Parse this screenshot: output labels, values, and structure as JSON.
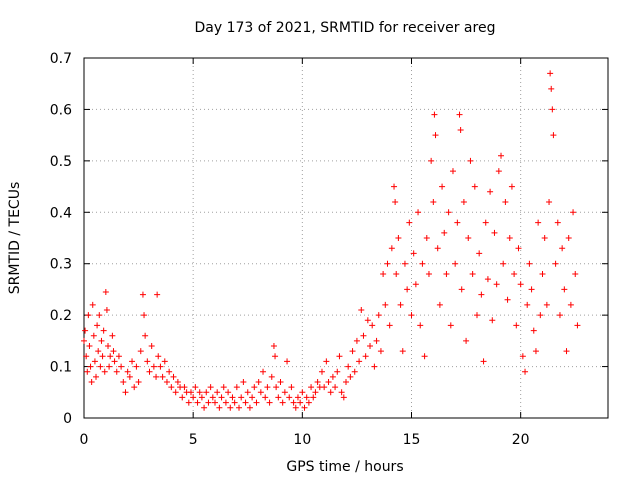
{
  "chart_data": {
    "type": "scatter",
    "title": "Day 173 of 2021, SRMTID for receiver areg",
    "xlabel": "GPS time / hours",
    "ylabel": "SRMTID / TECUs",
    "xlim": [
      0,
      24
    ],
    "ylim": [
      0,
      0.7
    ],
    "grid": true,
    "marker": "+",
    "x_ticks": [
      0,
      5,
      10,
      15,
      20
    ],
    "x_tick_labels": [
      "0",
      "5",
      "10",
      "15",
      "20"
    ],
    "y_ticks": [
      0,
      0.1,
      0.2,
      0.3,
      0.4,
      0.5,
      0.6,
      0.7
    ],
    "y_tick_labels": [
      "0",
      "0.1",
      "0.2",
      "0.3",
      "0.4",
      "0.5",
      "0.6",
      "0.7"
    ],
    "series": [
      {
        "name": "SRMTID",
        "color": "#ff0000",
        "points": [
          [
            0.0,
            0.15
          ],
          [
            0.05,
            0.17
          ],
          [
            0.1,
            0.12
          ],
          [
            0.15,
            0.09
          ],
          [
            0.2,
            0.2
          ],
          [
            0.25,
            0.14
          ],
          [
            0.3,
            0.1
          ],
          [
            0.35,
            0.07
          ],
          [
            0.4,
            0.22
          ],
          [
            0.45,
            0.16
          ],
          [
            0.5,
            0.11
          ],
          [
            0.55,
            0.08
          ],
          [
            0.6,
            0.18
          ],
          [
            0.65,
            0.13
          ],
          [
            0.7,
            0.2
          ],
          [
            0.75,
            0.1
          ],
          [
            0.8,
            0.15
          ],
          [
            0.85,
            0.12
          ],
          [
            0.9,
            0.17
          ],
          [
            0.95,
            0.09
          ],
          [
            1.0,
            0.245
          ],
          [
            1.05,
            0.21
          ],
          [
            1.1,
            0.14
          ],
          [
            1.15,
            0.1
          ],
          [
            1.2,
            0.12
          ],
          [
            1.3,
            0.16
          ],
          [
            1.35,
            0.13
          ],
          [
            1.4,
            0.11
          ],
          [
            1.5,
            0.09
          ],
          [
            1.6,
            0.12
          ],
          [
            1.7,
            0.1
          ],
          [
            1.8,
            0.07
          ],
          [
            1.9,
            0.05
          ],
          [
            2.0,
            0.09
          ],
          [
            2.1,
            0.08
          ],
          [
            2.2,
            0.11
          ],
          [
            2.3,
            0.06
          ],
          [
            2.4,
            0.1
          ],
          [
            2.5,
            0.07
          ],
          [
            2.6,
            0.13
          ],
          [
            2.7,
            0.24
          ],
          [
            2.75,
            0.2
          ],
          [
            2.8,
            0.16
          ],
          [
            2.9,
            0.11
          ],
          [
            3.0,
            0.09
          ],
          [
            3.1,
            0.14
          ],
          [
            3.2,
            0.1
          ],
          [
            3.3,
            0.08
          ],
          [
            3.35,
            0.24
          ],
          [
            3.4,
            0.12
          ],
          [
            3.5,
            0.1
          ],
          [
            3.6,
            0.08
          ],
          [
            3.7,
            0.11
          ],
          [
            3.8,
            0.07
          ],
          [
            3.9,
            0.09
          ],
          [
            4.0,
            0.06
          ],
          [
            4.1,
            0.08
          ],
          [
            4.2,
            0.05
          ],
          [
            4.3,
            0.07
          ],
          [
            4.4,
            0.06
          ],
          [
            4.5,
            0.04
          ],
          [
            4.6,
            0.06
          ],
          [
            4.7,
            0.05
          ],
          [
            4.8,
            0.03
          ],
          [
            4.9,
            0.05
          ],
          [
            5.0,
            0.04
          ],
          [
            5.1,
            0.06
          ],
          [
            5.2,
            0.03
          ],
          [
            5.3,
            0.05
          ],
          [
            5.4,
            0.04
          ],
          [
            5.5,
            0.02
          ],
          [
            5.6,
            0.05
          ],
          [
            5.7,
            0.03
          ],
          [
            5.8,
            0.06
          ],
          [
            5.9,
            0.04
          ],
          [
            6.0,
            0.03
          ],
          [
            6.1,
            0.05
          ],
          [
            6.2,
            0.02
          ],
          [
            6.3,
            0.04
          ],
          [
            6.4,
            0.06
          ],
          [
            6.5,
            0.03
          ],
          [
            6.6,
            0.05
          ],
          [
            6.7,
            0.02
          ],
          [
            6.8,
            0.04
          ],
          [
            6.9,
            0.03
          ],
          [
            7.0,
            0.06
          ],
          [
            7.1,
            0.02
          ],
          [
            7.2,
            0.04
          ],
          [
            7.3,
            0.07
          ],
          [
            7.4,
            0.03
          ],
          [
            7.5,
            0.05
          ],
          [
            7.6,
            0.02
          ],
          [
            7.7,
            0.04
          ],
          [
            7.8,
            0.06
          ],
          [
            7.9,
            0.03
          ],
          [
            8.0,
            0.07
          ],
          [
            8.1,
            0.05
          ],
          [
            8.2,
            0.09
          ],
          [
            8.3,
            0.04
          ],
          [
            8.4,
            0.06
          ],
          [
            8.5,
            0.03
          ],
          [
            8.6,
            0.08
          ],
          [
            8.7,
            0.14
          ],
          [
            8.75,
            0.12
          ],
          [
            8.8,
            0.06
          ],
          [
            8.9,
            0.04
          ],
          [
            9.0,
            0.07
          ],
          [
            9.1,
            0.03
          ],
          [
            9.2,
            0.05
          ],
          [
            9.3,
            0.11
          ],
          [
            9.4,
            0.04
          ],
          [
            9.5,
            0.06
          ],
          [
            9.6,
            0.03
          ],
          [
            9.7,
            0.02
          ],
          [
            9.8,
            0.04
          ],
          [
            9.9,
            0.03
          ],
          [
            10.0,
            0.05
          ],
          [
            10.1,
            0.02
          ],
          [
            10.2,
            0.04
          ],
          [
            10.3,
            0.03
          ],
          [
            10.4,
            0.06
          ],
          [
            10.5,
            0.04
          ],
          [
            10.6,
            0.05
          ],
          [
            10.7,
            0.07
          ],
          [
            10.8,
            0.06
          ],
          [
            10.9,
            0.09
          ],
          [
            11.0,
            0.06
          ],
          [
            11.1,
            0.11
          ],
          [
            11.2,
            0.07
          ],
          [
            11.3,
            0.05
          ],
          [
            11.4,
            0.08
          ],
          [
            11.5,
            0.06
          ],
          [
            11.6,
            0.09
          ],
          [
            11.7,
            0.12
          ],
          [
            11.8,
            0.05
          ],
          [
            11.9,
            0.04
          ],
          [
            12.0,
            0.07
          ],
          [
            12.1,
            0.1
          ],
          [
            12.2,
            0.08
          ],
          [
            12.3,
            0.13
          ],
          [
            12.4,
            0.09
          ],
          [
            12.5,
            0.15
          ],
          [
            12.6,
            0.11
          ],
          [
            12.7,
            0.21
          ],
          [
            12.8,
            0.16
          ],
          [
            12.9,
            0.12
          ],
          [
            13.0,
            0.19
          ],
          [
            13.1,
            0.14
          ],
          [
            13.2,
            0.18
          ],
          [
            13.3,
            0.1
          ],
          [
            13.4,
            0.15
          ],
          [
            13.5,
            0.2
          ],
          [
            13.6,
            0.13
          ],
          [
            13.7,
            0.28
          ],
          [
            13.8,
            0.22
          ],
          [
            13.9,
            0.3
          ],
          [
            14.0,
            0.18
          ],
          [
            14.1,
            0.33
          ],
          [
            14.2,
            0.45
          ],
          [
            14.25,
            0.42
          ],
          [
            14.3,
            0.28
          ],
          [
            14.4,
            0.35
          ],
          [
            14.5,
            0.22
          ],
          [
            14.6,
            0.13
          ],
          [
            14.7,
            0.3
          ],
          [
            14.8,
            0.25
          ],
          [
            14.9,
            0.38
          ],
          [
            15.0,
            0.2
          ],
          [
            15.1,
            0.32
          ],
          [
            15.2,
            0.26
          ],
          [
            15.3,
            0.4
          ],
          [
            15.4,
            0.18
          ],
          [
            15.5,
            0.3
          ],
          [
            15.6,
            0.12
          ],
          [
            15.7,
            0.35
          ],
          [
            15.8,
            0.28
          ],
          [
            15.9,
            0.5
          ],
          [
            16.0,
            0.42
          ],
          [
            16.05,
            0.59
          ],
          [
            16.1,
            0.55
          ],
          [
            16.2,
            0.33
          ],
          [
            16.3,
            0.22
          ],
          [
            16.4,
            0.45
          ],
          [
            16.5,
            0.36
          ],
          [
            16.6,
            0.28
          ],
          [
            16.7,
            0.4
          ],
          [
            16.8,
            0.18
          ],
          [
            16.9,
            0.48
          ],
          [
            17.0,
            0.3
          ],
          [
            17.1,
            0.38
          ],
          [
            17.2,
            0.59
          ],
          [
            17.25,
            0.56
          ],
          [
            17.3,
            0.25
          ],
          [
            17.4,
            0.42
          ],
          [
            17.5,
            0.15
          ],
          [
            17.6,
            0.35
          ],
          [
            17.7,
            0.5
          ],
          [
            17.8,
            0.28
          ],
          [
            17.9,
            0.45
          ],
          [
            18.0,
            0.2
          ],
          [
            18.1,
            0.32
          ],
          [
            18.2,
            0.24
          ],
          [
            18.3,
            0.11
          ],
          [
            18.4,
            0.38
          ],
          [
            18.5,
            0.27
          ],
          [
            18.6,
            0.44
          ],
          [
            18.7,
            0.19
          ],
          [
            18.8,
            0.36
          ],
          [
            18.9,
            0.26
          ],
          [
            19.0,
            0.48
          ],
          [
            19.1,
            0.51
          ],
          [
            19.2,
            0.3
          ],
          [
            19.3,
            0.42
          ],
          [
            19.4,
            0.23
          ],
          [
            19.5,
            0.35
          ],
          [
            19.6,
            0.45
          ],
          [
            19.7,
            0.28
          ],
          [
            19.8,
            0.18
          ],
          [
            19.9,
            0.33
          ],
          [
            20.0,
            0.26
          ],
          [
            20.1,
            0.12
          ],
          [
            20.2,
            0.09
          ],
          [
            20.3,
            0.22
          ],
          [
            20.4,
            0.3
          ],
          [
            20.5,
            0.25
          ],
          [
            20.6,
            0.17
          ],
          [
            20.7,
            0.13
          ],
          [
            20.8,
            0.38
          ],
          [
            20.9,
            0.2
          ],
          [
            21.0,
            0.28
          ],
          [
            21.1,
            0.35
          ],
          [
            21.2,
            0.22
          ],
          [
            21.3,
            0.42
          ],
          [
            21.35,
            0.67
          ],
          [
            21.4,
            0.64
          ],
          [
            21.45,
            0.6
          ],
          [
            21.5,
            0.55
          ],
          [
            21.6,
            0.3
          ],
          [
            21.7,
            0.38
          ],
          [
            21.8,
            0.2
          ],
          [
            21.9,
            0.33
          ],
          [
            22.0,
            0.25
          ],
          [
            22.1,
            0.13
          ],
          [
            22.2,
            0.35
          ],
          [
            22.3,
            0.22
          ],
          [
            22.4,
            0.4
          ],
          [
            22.5,
            0.28
          ],
          [
            22.6,
            0.18
          ]
        ]
      }
    ]
  }
}
